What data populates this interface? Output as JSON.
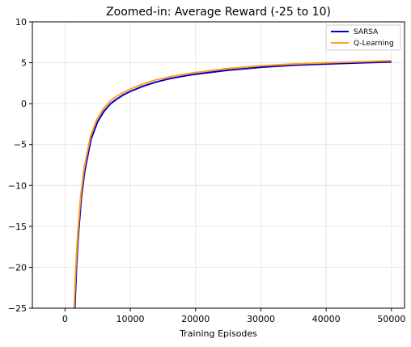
{
  "chart_data": {
    "type": "line",
    "title": "Zoomed-in: Average Reward (-25 to 10)",
    "xlabel": "Training Episodes",
    "ylabel": "",
    "xlim": [
      -5000,
      52000
    ],
    "ylim": [
      -25,
      10
    ],
    "xticks": [
      0,
      10000,
      20000,
      30000,
      40000,
      50000
    ],
    "yticks": [
      10,
      5,
      0,
      -5,
      -10,
      -15,
      -20,
      -25
    ],
    "ytick_labels": [
      "10",
      "5",
      "0",
      "−5",
      "−10",
      "−15",
      "−20",
      "−25"
    ],
    "grid": true,
    "legend_position": "top-right",
    "series": [
      {
        "name": "SARSA",
        "color": "#0000cc",
        "points": [
          [
            1500,
            -25
          ],
          [
            1750,
            -20
          ],
          [
            2000,
            -16.5
          ],
          [
            2500,
            -11.5
          ],
          [
            3000,
            -8.3
          ],
          [
            4000,
            -4.3
          ],
          [
            5000,
            -2.2
          ],
          [
            6000,
            -0.9
          ],
          [
            7000,
            0.0
          ],
          [
            8000,
            0.6
          ],
          [
            9000,
            1.1
          ],
          [
            10000,
            1.5
          ],
          [
            12000,
            2.15
          ],
          [
            14000,
            2.65
          ],
          [
            16000,
            3.05
          ],
          [
            18000,
            3.35
          ],
          [
            20000,
            3.6
          ],
          [
            25000,
            4.1
          ],
          [
            30000,
            4.45
          ],
          [
            35000,
            4.7
          ],
          [
            40000,
            4.85
          ],
          [
            45000,
            4.98
          ],
          [
            50000,
            5.1
          ]
        ]
      },
      {
        "name": "Q-Learning",
        "color": "#ff9f1c",
        "points": [
          [
            1400,
            -25
          ],
          [
            1650,
            -20
          ],
          [
            1900,
            -16.5
          ],
          [
            2400,
            -11.3
          ],
          [
            2900,
            -8.0
          ],
          [
            3900,
            -4.0
          ],
          [
            4900,
            -1.9
          ],
          [
            5900,
            -0.6
          ],
          [
            6900,
            0.3
          ],
          [
            7900,
            0.9
          ],
          [
            8900,
            1.35
          ],
          [
            9900,
            1.75
          ],
          [
            11900,
            2.4
          ],
          [
            13900,
            2.9
          ],
          [
            15900,
            3.25
          ],
          [
            17900,
            3.55
          ],
          [
            19900,
            3.8
          ],
          [
            24900,
            4.3
          ],
          [
            29900,
            4.62
          ],
          [
            34900,
            4.85
          ],
          [
            39900,
            5.0
          ],
          [
            44900,
            5.12
          ],
          [
            50000,
            5.25
          ]
        ]
      }
    ]
  }
}
